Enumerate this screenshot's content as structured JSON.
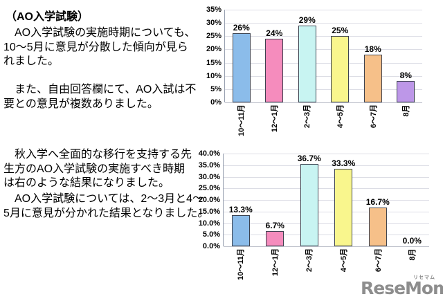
{
  "left_text": {
    "heading": "（AO入学試験）",
    "para1": "　AO入学試験の実施時期についても、\n10～5月に意見が分散した傾向が見ら\nれました。",
    "para2": "　また、自由回答欄にて、AO入試は不\n要との意見が複数ありました。",
    "para3": "　秋入学へ全面的な移行を支持する先\n生方のAO入学試験の実施すべき時期\nは右のような結果になりました。",
    "para4": "　AO入学試験については、2～3月と4～\n5月に意見が分かれた結果となりました。"
  },
  "chart_data": [
    {
      "type": "bar",
      "title": "",
      "categories": [
        "10～11月",
        "12～1月",
        "2～3月",
        "4～5月",
        "6～7月",
        "8月"
      ],
      "values": [
        26,
        24,
        29,
        25,
        18,
        8
      ],
      "data_labels": [
        "26%",
        "24%",
        "29%",
        "25%",
        "18%",
        "8%"
      ],
      "y_ticks": [
        "35%",
        "30%",
        "25%",
        "20%",
        "15%",
        "10%",
        "5%",
        "0%"
      ],
      "ylim": [
        0,
        35
      ],
      "xlabel": "",
      "ylabel": "",
      "grid": true,
      "legend": false,
      "bar_colors": [
        "#8bbcea",
        "#f58cbd",
        "#c8f4f2",
        "#f9f68d",
        "#f6c089",
        "#bd97e8"
      ],
      "bar_border": "#3d4350"
    },
    {
      "type": "bar",
      "title": "",
      "categories": [
        "10～11月",
        "12～1月",
        "2～3月",
        "4～5月",
        "6～7月",
        "8月"
      ],
      "values": [
        13.3,
        6.7,
        36.7,
        33.3,
        16.7,
        0
      ],
      "data_labels": [
        "13.3%",
        "6.7%",
        "36.7%",
        "33.3%",
        "16.7%",
        "0.0%"
      ],
      "y_ticks": [
        "40.0%",
        "35.0%",
        "30.0%",
        "25.0%",
        "20.0%",
        "15.0%",
        "10.0%",
        "5.0%",
        "0.0%"
      ],
      "ylim": [
        0,
        40
      ],
      "xlabel": "",
      "ylabel": "",
      "grid": true,
      "legend": false,
      "bar_colors": [
        "#8bbcea",
        "#f58cbd",
        "#c8f4f2",
        "#f9f68d",
        "#f6c089",
        "#bd97e8"
      ],
      "bar_border": "#3d4350"
    }
  ],
  "logo": {
    "text": "ReseMom.",
    "ruby": "リセマム",
    "color": "#8d8d8d"
  }
}
